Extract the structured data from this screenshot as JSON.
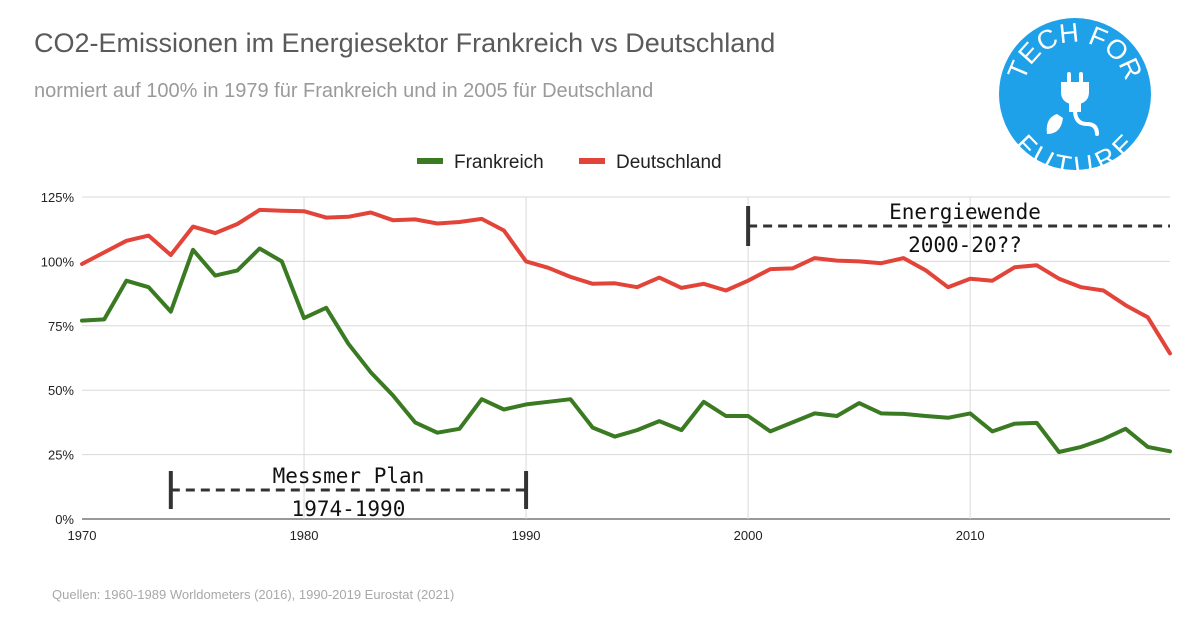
{
  "title": "CO2-Emissionen im Energiesektor Frankreich vs Deutschland",
  "subtitle": "normiert auf 100% in 1979 für Frankreich und in 2005 für Deutschland",
  "source": "Quellen: 1960-1989 Worldometers (2016), 1990-2019 Eurostat (2021)",
  "logo": {
    "top_text": "TECH FOR",
    "bottom_text": "FUTURE",
    "icon": "plug-leaf-icon",
    "color": "#1ea1e8"
  },
  "annotations": {
    "messmer": {
      "line1": "Messmer Plan",
      "line2": "1974-1990",
      "start": 1974,
      "end": 1990
    },
    "energiewende": {
      "line1": "Energiewende",
      "line2": "2000-20??",
      "start": 2000
    }
  },
  "chart_data": {
    "type": "line",
    "x": [
      1970,
      1971,
      1972,
      1973,
      1974,
      1975,
      1976,
      1977,
      1978,
      1979,
      1980,
      1981,
      1982,
      1983,
      1984,
      1985,
      1986,
      1987,
      1988,
      1989,
      1990,
      1991,
      1992,
      1993,
      1994,
      1995,
      1996,
      1997,
      1998,
      1999,
      2000,
      2001,
      2002,
      2003,
      2004,
      2005,
      2006,
      2007,
      2008,
      2009,
      2010,
      2011,
      2012,
      2013,
      2014,
      2015,
      2016,
      2017,
      2018,
      2019
    ],
    "xlim": [
      1970,
      2019
    ],
    "ylim": [
      0,
      125
    ],
    "y_ticks": [
      "0%",
      "25%",
      "50%",
      "75%",
      "100%",
      "125%"
    ],
    "x_ticks": [
      "1970",
      "1980",
      "1990",
      "2000",
      "2010"
    ],
    "grid": true,
    "legend_position": "top-center",
    "series": [
      {
        "name": "Frankreich",
        "color": "#3a7a22",
        "values": [
          77,
          77.5,
          92.5,
          90,
          80.5,
          104.5,
          94.5,
          96.5,
          105,
          100,
          78,
          82,
          68,
          57,
          48,
          37.5,
          33.5,
          35,
          46.5,
          42.5,
          44.5,
          45.5,
          46.5,
          35.5,
          32,
          34.5,
          38,
          34.5,
          45.5,
          40,
          40,
          34,
          37.5,
          41,
          40,
          45,
          41,
          40.8,
          40,
          39.3,
          41,
          34,
          37,
          37.3,
          26,
          28,
          31,
          35,
          28,
          26.3
        ]
      },
      {
        "name": "Deutschland",
        "color": "#e3443a",
        "values": [
          99,
          103.5,
          108,
          110,
          102.5,
          113.5,
          111,
          114.5,
          120,
          119.7,
          119.5,
          117,
          117.3,
          119,
          116,
          116.3,
          114.7,
          115.3,
          116.5,
          112,
          100,
          97.5,
          94,
          91.3,
          91.5,
          90,
          93.7,
          89.7,
          91.3,
          88.7,
          92.5,
          97,
          97.3,
          101.3,
          100.3,
          100,
          99.3,
          101.3,
          96.5,
          90,
          93.3,
          92.5,
          97.7,
          98.5,
          93.3,
          90,
          88.7,
          83,
          78.3,
          64.3
        ]
      }
    ]
  }
}
